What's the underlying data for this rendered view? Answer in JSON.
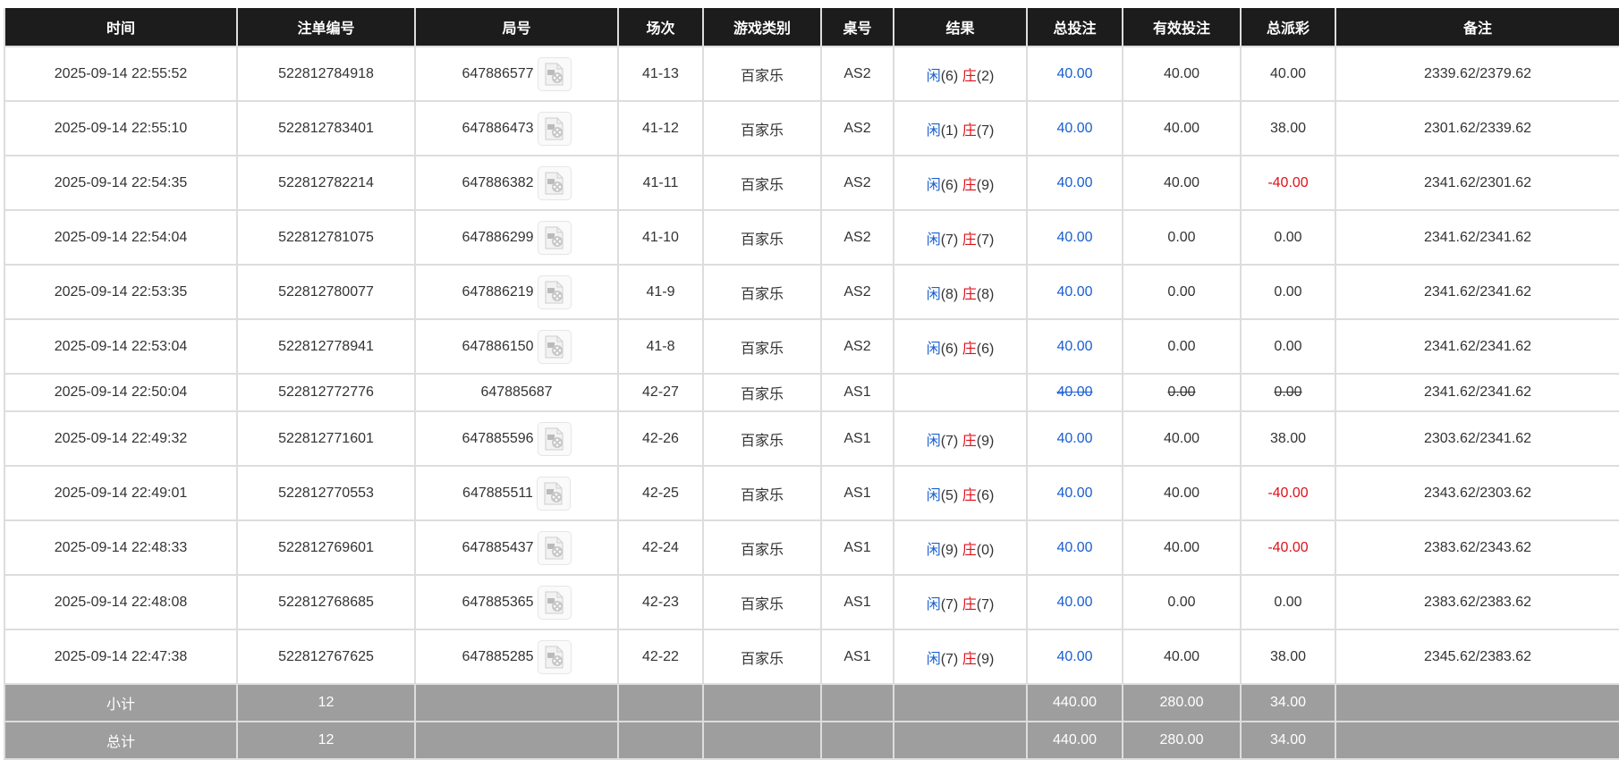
{
  "headers": [
    "时间",
    "注单编号",
    "局号",
    "场次",
    "游戏类别",
    "桌号",
    "结果",
    "总投注",
    "有效投注",
    "总派彩",
    "备注"
  ],
  "colors": {
    "header_bg": "#1c1c1c",
    "footer_bg": "#9e9e9e",
    "player": "#1a5fd0",
    "banker": "#e0101a",
    "negative": "#e0101a"
  },
  "result_labels": {
    "player": "闲",
    "banker": "庄"
  },
  "rows": [
    {
      "time": "2025-09-14 22:55:52",
      "bet_id": "522812784918",
      "round": "647886577",
      "has_video": true,
      "shoe": "41-13",
      "game": "百家乐",
      "table": "AS2",
      "p": "(6)",
      "b": "(2)",
      "total": "40.00",
      "valid": "40.00",
      "payout": "40.00",
      "neg": false,
      "note": "2339.62/2379.62"
    },
    {
      "time": "2025-09-14 22:55:10",
      "bet_id": "522812783401",
      "round": "647886473",
      "has_video": true,
      "shoe": "41-12",
      "game": "百家乐",
      "table": "AS2",
      "p": "(1)",
      "b": "(7)",
      "total": "40.00",
      "valid": "40.00",
      "payout": "38.00",
      "neg": false,
      "note": "2301.62/2339.62"
    },
    {
      "time": "2025-09-14 22:54:35",
      "bet_id": "522812782214",
      "round": "647886382",
      "has_video": true,
      "shoe": "41-11",
      "game": "百家乐",
      "table": "AS2",
      "p": "(6)",
      "b": "(9)",
      "total": "40.00",
      "valid": "40.00",
      "payout": "-40.00",
      "neg": true,
      "note": "2341.62/2301.62"
    },
    {
      "time": "2025-09-14 22:54:04",
      "bet_id": "522812781075",
      "round": "647886299",
      "has_video": true,
      "shoe": "41-10",
      "game": "百家乐",
      "table": "AS2",
      "p": "(7)",
      "b": "(7)",
      "total": "40.00",
      "valid": "0.00",
      "payout": "0.00",
      "neg": false,
      "note": "2341.62/2341.62"
    },
    {
      "time": "2025-09-14 22:53:35",
      "bet_id": "522812780077",
      "round": "647886219",
      "has_video": true,
      "shoe": "41-9",
      "game": "百家乐",
      "table": "AS2",
      "p": "(8)",
      "b": "(8)",
      "total": "40.00",
      "valid": "0.00",
      "payout": "0.00",
      "neg": false,
      "note": "2341.62/2341.62"
    },
    {
      "time": "2025-09-14 22:53:04",
      "bet_id": "522812778941",
      "round": "647886150",
      "has_video": true,
      "shoe": "41-8",
      "game": "百家乐",
      "table": "AS2",
      "p": "(6)",
      "b": "(6)",
      "total": "40.00",
      "valid": "0.00",
      "payout": "0.00",
      "neg": false,
      "note": "2341.62/2341.62"
    },
    {
      "time": "2025-09-14 22:50:04",
      "bet_id": "522812772776",
      "round": "647885687",
      "has_video": false,
      "cancelled": true,
      "shoe": "42-27",
      "game": "百家乐",
      "table": "AS1",
      "p": "",
      "b": "",
      "total": "40.00",
      "valid": "0.00",
      "payout": "0.00",
      "neg": false,
      "note": "2341.62/2341.62"
    },
    {
      "time": "2025-09-14 22:49:32",
      "bet_id": "522812771601",
      "round": "647885596",
      "has_video": true,
      "shoe": "42-26",
      "game": "百家乐",
      "table": "AS1",
      "p": "(7)",
      "b": "(9)",
      "total": "40.00",
      "valid": "40.00",
      "payout": "38.00",
      "neg": false,
      "note": "2303.62/2341.62"
    },
    {
      "time": "2025-09-14 22:49:01",
      "bet_id": "522812770553",
      "round": "647885511",
      "has_video": true,
      "shoe": "42-25",
      "game": "百家乐",
      "table": "AS1",
      "p": "(5)",
      "b": "(6)",
      "total": "40.00",
      "valid": "40.00",
      "payout": "-40.00",
      "neg": true,
      "note": "2343.62/2303.62"
    },
    {
      "time": "2025-09-14 22:48:33",
      "bet_id": "522812769601",
      "round": "647885437",
      "has_video": true,
      "shoe": "42-24",
      "game": "百家乐",
      "table": "AS1",
      "p": "(9)",
      "b": "(0)",
      "total": "40.00",
      "valid": "40.00",
      "payout": "-40.00",
      "neg": true,
      "note": "2383.62/2343.62"
    },
    {
      "time": "2025-09-14 22:48:08",
      "bet_id": "522812768685",
      "round": "647885365",
      "has_video": true,
      "shoe": "42-23",
      "game": "百家乐",
      "table": "AS1",
      "p": "(7)",
      "b": "(7)",
      "total": "40.00",
      "valid": "0.00",
      "payout": "0.00",
      "neg": false,
      "note": "2383.62/2383.62"
    },
    {
      "time": "2025-09-14 22:47:38",
      "bet_id": "522812767625",
      "round": "647885285",
      "has_video": true,
      "shoe": "42-22",
      "game": "百家乐",
      "table": "AS1",
      "p": "(7)",
      "b": "(9)",
      "total": "40.00",
      "valid": "40.00",
      "payout": "38.00",
      "neg": false,
      "note": "2345.62/2383.62"
    }
  ],
  "footer": [
    {
      "label": "小计",
      "count": "12",
      "total": "440.00",
      "valid": "280.00",
      "payout": "34.00"
    },
    {
      "label": "总计",
      "count": "12",
      "total": "440.00",
      "valid": "280.00",
      "payout": "34.00"
    }
  ]
}
